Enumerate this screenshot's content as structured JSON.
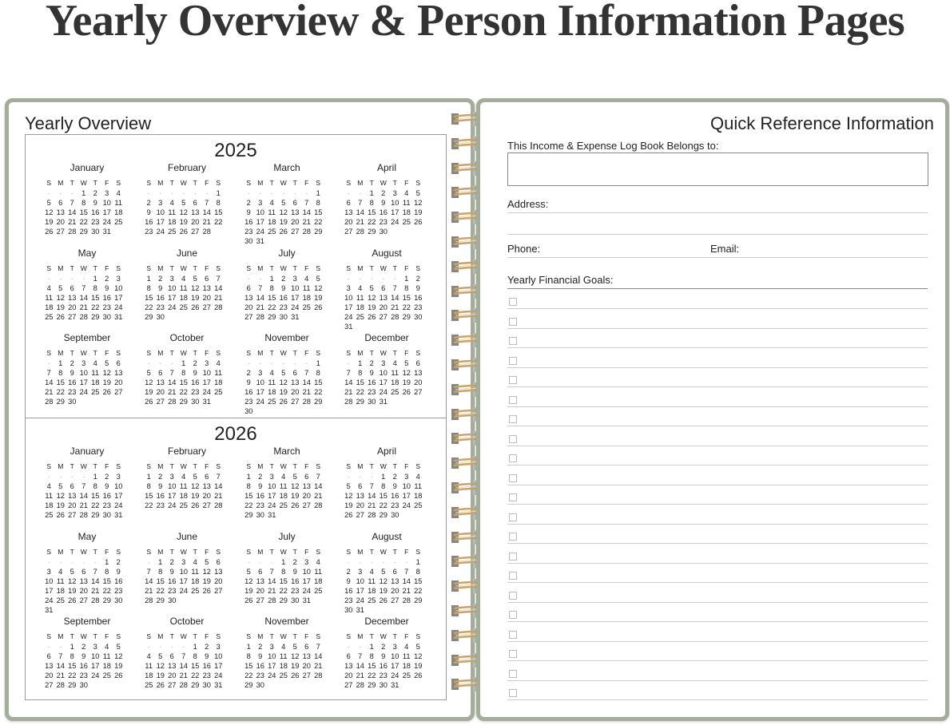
{
  "heading": "Yearly Overview & Person Information Pages",
  "left_page": {
    "title": "Yearly Overview",
    "weekdays": [
      "S",
      "M",
      "T",
      "W",
      "T",
      "F",
      "S"
    ],
    "years": [
      {
        "year": "2025",
        "months": [
          {
            "name": "January",
            "weeks": [
              "- - - 1 2 3 4",
              "5 6 7 8 9 10 11",
              "12 13 14 15 16 17 18",
              "19 20 21 22 23 24 25",
              "26 27 28 29 30 31"
            ]
          },
          {
            "name": "February",
            "weeks": [
              "- - - - - - 1",
              "2 3 4 5 6 7 8",
              "9 10 11 12 13 14 15",
              "16 17 18 19 20 21 22",
              "23 24 25 26 27 28"
            ]
          },
          {
            "name": "March",
            "weeks": [
              "- - - - - - 1",
              "2 3 4 5 6 7 8",
              "9 10 11 12 13 14 15",
              "16 17 18 19 20 21 22",
              "23 24 25 26 27 28 29",
              "30 31"
            ]
          },
          {
            "name": "April",
            "weeks": [
              "- - 1 2 3 4 5",
              "6 7 8 9 10 11 12",
              "13 14 15 16 17 18 19",
              "20 21 22 23 24 25 26",
              "27 28 29 30"
            ]
          },
          {
            "name": "May",
            "weeks": [
              "- - - - 1 2 3",
              "4 5 6 7 8 9 10",
              "11 12 13 14 15 16 17",
              "18 19 20 21 22 23 24",
              "25 26 27 28 29 30 31"
            ]
          },
          {
            "name": "June",
            "weeks": [
              "1 2 3 4 5 6 7",
              "8 9 10 11 12 13 14",
              "15 16 17 18 19 20 21",
              "22 23 24 25 26 27 28",
              "29 30"
            ]
          },
          {
            "name": "July",
            "weeks": [
              "- - 1 2 3 4 5",
              "6 7 8 9 10 11 12",
              "13 14 15 16 17 18 19",
              "20 21 22 23 24 25 26",
              "27 28 29 30 31"
            ]
          },
          {
            "name": "August",
            "weeks": [
              "- - - - - 1 2",
              "3 4 5 6 7 8 9",
              "10 11 12 13 14 15 16",
              "17 18 19 20 21 22 23",
              "24 25 26 27 28 29 30",
              "31"
            ]
          },
          {
            "name": "September",
            "weeks": [
              "- 1 2 3 4 5 6",
              "7 8 9 10 11 12 13",
              "14 15 16 17 18 19 20",
              "21 22 23 24 25 26 27",
              "28 29 30"
            ]
          },
          {
            "name": "October",
            "weeks": [
              "- - - 1 2 3 4",
              "5 6 7 8 9 10 11",
              "12 13 14 15 16 17 18",
              "19 20 21 22 23 24 25",
              "26 27 28 29 30 31"
            ]
          },
          {
            "name": "November",
            "weeks": [
              "- - - - - - 1",
              "2 3 4 5 6 7 8",
              "9 10 11 12 13 14 15",
              "16 17 18 19 20 21 22",
              "23 24 25 26 27 28 29",
              "30"
            ]
          },
          {
            "name": "December",
            "weeks": [
              "- 1 2 3 4 5 6",
              "7 8 9 10 11 12 13",
              "14 15 16 17 18 19 20",
              "21 22 23 24 25 26 27",
              "28 29 30 31"
            ]
          }
        ]
      },
      {
        "year": "2026",
        "months": [
          {
            "name": "January",
            "weeks": [
              "- - - - 1 2 3",
              "4 5 6 7 8 9 10",
              "11 12 13 14 15 16 17",
              "18 19 20 21 22 23 24",
              "25 26 27 28 29 30 31"
            ]
          },
          {
            "name": "February",
            "weeks": [
              "1 2 3 4 5 6 7",
              "8 9 10 11 12 13 14",
              "15 16 17 18 19 20 21",
              "22 23 24 25 26 27 28"
            ]
          },
          {
            "name": "March",
            "weeks": [
              "1 2 3 4 5 6 7",
              "8 9 10 11 12 13 14",
              "15 16 17 18 19 20 21",
              "22 23 24 25 26 27 28",
              "29 30 31"
            ]
          },
          {
            "name": "April",
            "weeks": [
              "- - - 1 2 3 4",
              "5 6 7 8 9 10 11",
              "12 13 14 15 16 17 18",
              "19 20 21 22 23 24 25",
              "26 27 28 29 30"
            ]
          },
          {
            "name": "May",
            "weeks": [
              "- - - - - 1 2",
              "3 4 5 6 7 8 9",
              "10 11 12 13 14 15 16",
              "17 18 19 20 21 22 23",
              "24 25 26 27 28 29 30",
              "31"
            ]
          },
          {
            "name": "June",
            "weeks": [
              "- 1 2 3 4 5 6",
              "7 8 9 10 11 12 13",
              "14 15 16 17 18 19 20",
              "21 22 23 24 25 26 27",
              "28 29 30"
            ]
          },
          {
            "name": "July",
            "weeks": [
              "- - - 1 2 3 4",
              "5 6 7 8 9 10 11",
              "12 13 14 15 16 17 18",
              "19 20 21 22 23 24 25",
              "26 27 28 29 30 31"
            ]
          },
          {
            "name": "August",
            "weeks": [
              "- - - - - - 1",
              "2 3 4 5 6 7 8",
              "9 10 11 12 13 14 15",
              "16 17 18 19 20 21 22",
              "23 24 25 26 27 28 29",
              "30 31"
            ]
          },
          {
            "name": "September",
            "weeks": [
              "- - 1 2 3 4 5",
              "6 7 8 9 10 11 12",
              "13 14 15 16 17 18 19",
              "20 21 22 23 24 25 26",
              "27 28 29 30"
            ]
          },
          {
            "name": "October",
            "weeks": [
              "- - - - 1 2 3",
              "4 5 6 7 8 9 10",
              "11 12 13 14 15 16 17",
              "18 19 20 21 22 23 24",
              "25 26 27 28 29 30 31"
            ]
          },
          {
            "name": "November",
            "weeks": [
              "1 2 3 4 5 6 7",
              "8 9 10 11 12 13 14",
              "15 16 17 18 19 20 21",
              "22 23 24 25 26 27 28",
              "29 30"
            ]
          },
          {
            "name": "December",
            "weeks": [
              "- - 1 2 3 4 5",
              "6 7 8 9 10 11 12",
              "13 14 15 16 17 18 19",
              "20 21 22 23 24 25 26",
              "27 28 29 30 31"
            ]
          }
        ]
      }
    ]
  },
  "right_page": {
    "title": "Quick Reference Information",
    "belongs_to_label": "This Income & Expense Log Book Belongs to:",
    "address_label": "Address:",
    "phone_label": "Phone:",
    "email_label": "Email:",
    "goals_label": "Yearly Financial Goals:",
    "goal_checkbox_count": 21
  },
  "colors": {
    "cover_border": "#a4ac9a",
    "spiral": "#c9a36a"
  },
  "icons": {
    "binding": "spiral-binding-icon",
    "goal": "checkbox-icon"
  }
}
